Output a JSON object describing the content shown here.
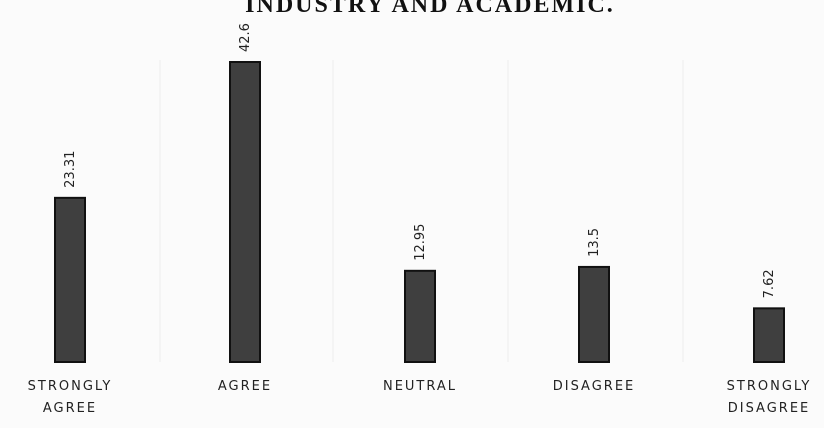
{
  "chart_data": {
    "type": "bar",
    "title": "INDUSTRY AND ACADEMIC.",
    "categories": [
      "STRONGLY AGREE",
      "AGREE",
      "NEUTRAL",
      "DISAGREE",
      "STRONGLY DISAGREE"
    ],
    "values": [
      23.31,
      42.6,
      12.95,
      13.5,
      7.62
    ],
    "color": "#3f3f3f"
  }
}
